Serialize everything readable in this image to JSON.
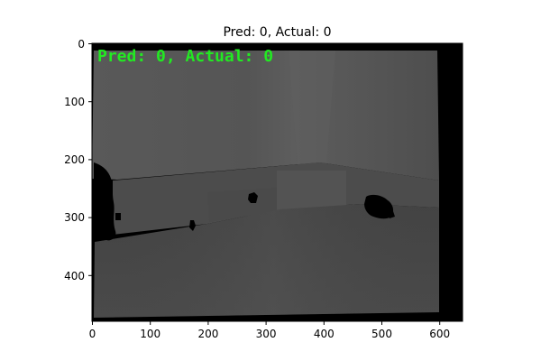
{
  "figure": {
    "title": "Pred: 0, Actual: 0",
    "overlay_text": "Pred: 0, Actual: 0",
    "overlay_color": "#22e922",
    "image_content": "grayscale depth map of an indoor room corner with floor, wall and black shadow regions",
    "axes": {
      "x_ticks": [
        "0",
        "100",
        "200",
        "300",
        "400",
        "500",
        "600"
      ],
      "y_ticks": [
        "0",
        "100",
        "200",
        "300",
        "400"
      ],
      "x_range": [
        0,
        640
      ],
      "y_range": [
        0,
        480
      ]
    }
  }
}
